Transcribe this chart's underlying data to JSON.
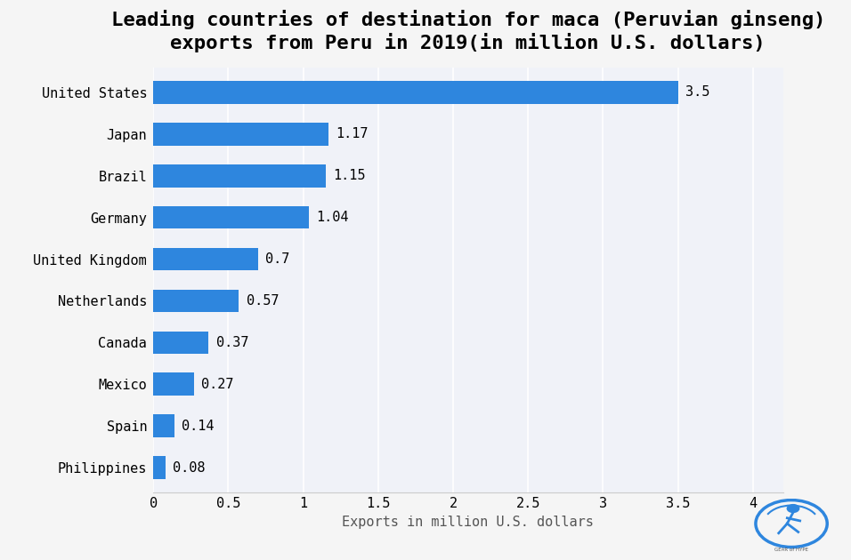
{
  "title": "Leading countries of destination for maca (Peruvian ginseng)\nexports from Peru in 2019(in million U.S. dollars)",
  "countries": [
    "Philippines",
    "Spain",
    "Mexico",
    "Canada",
    "Netherlands",
    "United Kingdom",
    "Germany",
    "Brazil",
    "Japan",
    "United States"
  ],
  "values": [
    0.08,
    0.14,
    0.27,
    0.37,
    0.57,
    0.7,
    1.04,
    1.15,
    1.17,
    3.5
  ],
  "bar_color": "#2e86de",
  "background_color": "#f5f5f5",
  "plot_bg_color": "#f0f2f8",
  "xlabel": "Exports in million U.S. dollars",
  "xlim": [
    0,
    4.2
  ],
  "xticks": [
    0,
    0.5,
    1,
    1.5,
    2,
    2.5,
    3,
    3.5,
    4
  ],
  "xtick_labels": [
    "0",
    "0.5",
    "1",
    "1.5",
    "2",
    "2.5",
    "3",
    "3.5",
    "4"
  ],
  "title_fontsize": 16,
  "label_fontsize": 11,
  "tick_fontsize": 11,
  "value_labels": [
    "0.08",
    "0.14",
    "0.27",
    "0.37",
    "0.57",
    "0.7",
    "1.04",
    "1.15",
    "1.17",
    "3.5"
  ],
  "bar_height": 0.55
}
